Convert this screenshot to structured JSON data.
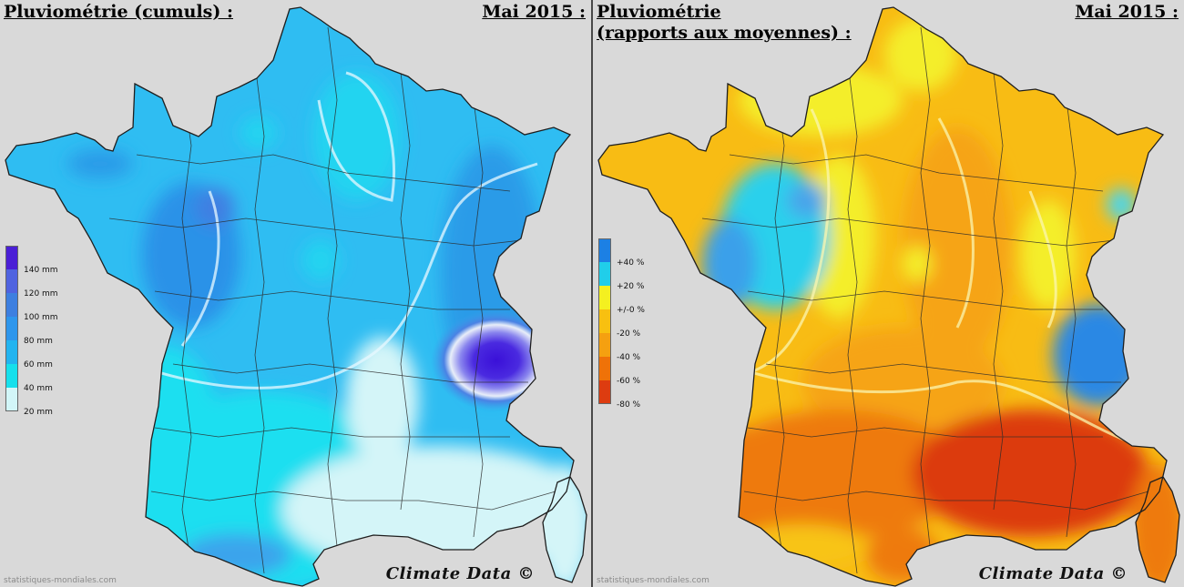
{
  "left_panel": {
    "title": "Pluviométrie (cumuls) :",
    "date": "Mai 2015 :",
    "credit": "Climate Data ©",
    "watermark": "statistiques-mondiales.com",
    "legend": [
      {
        "label": "140 mm",
        "color": "#4a1fd6"
      },
      {
        "label": "120 mm",
        "color": "#4f63e0"
      },
      {
        "label": "100 mm",
        "color": "#3d7fe0"
      },
      {
        "label": "80 mm",
        "color": "#2e96ec"
      },
      {
        "label": "60 mm",
        "color": "#22b4f0"
      },
      {
        "label": "40 mm",
        "color": "#16e0ec"
      },
      {
        "label": "20 mm",
        "color": "#d2f6f8"
      }
    ]
  },
  "right_panel": {
    "title": "Pluviométrie\n(rapports aux moyennes) :",
    "date": "Mai 2015 :",
    "credit": "Climate Data ©",
    "watermark": "statistiques-mondiales.com",
    "legend": [
      {
        "label": "+40 %",
        "color": "#1c80e4"
      },
      {
        "label": "+20 %",
        "color": "#20ceea"
      },
      {
        "label": "+/-0 %",
        "color": "#f4f020"
      },
      {
        "label": "-20 %",
        "color": "#f8c010"
      },
      {
        "label": "-40 %",
        "color": "#f5a010"
      },
      {
        "label": "-60 %",
        "color": "#ef7208"
      },
      {
        "label": "-80 %",
        "color": "#dd3c10"
      }
    ]
  }
}
